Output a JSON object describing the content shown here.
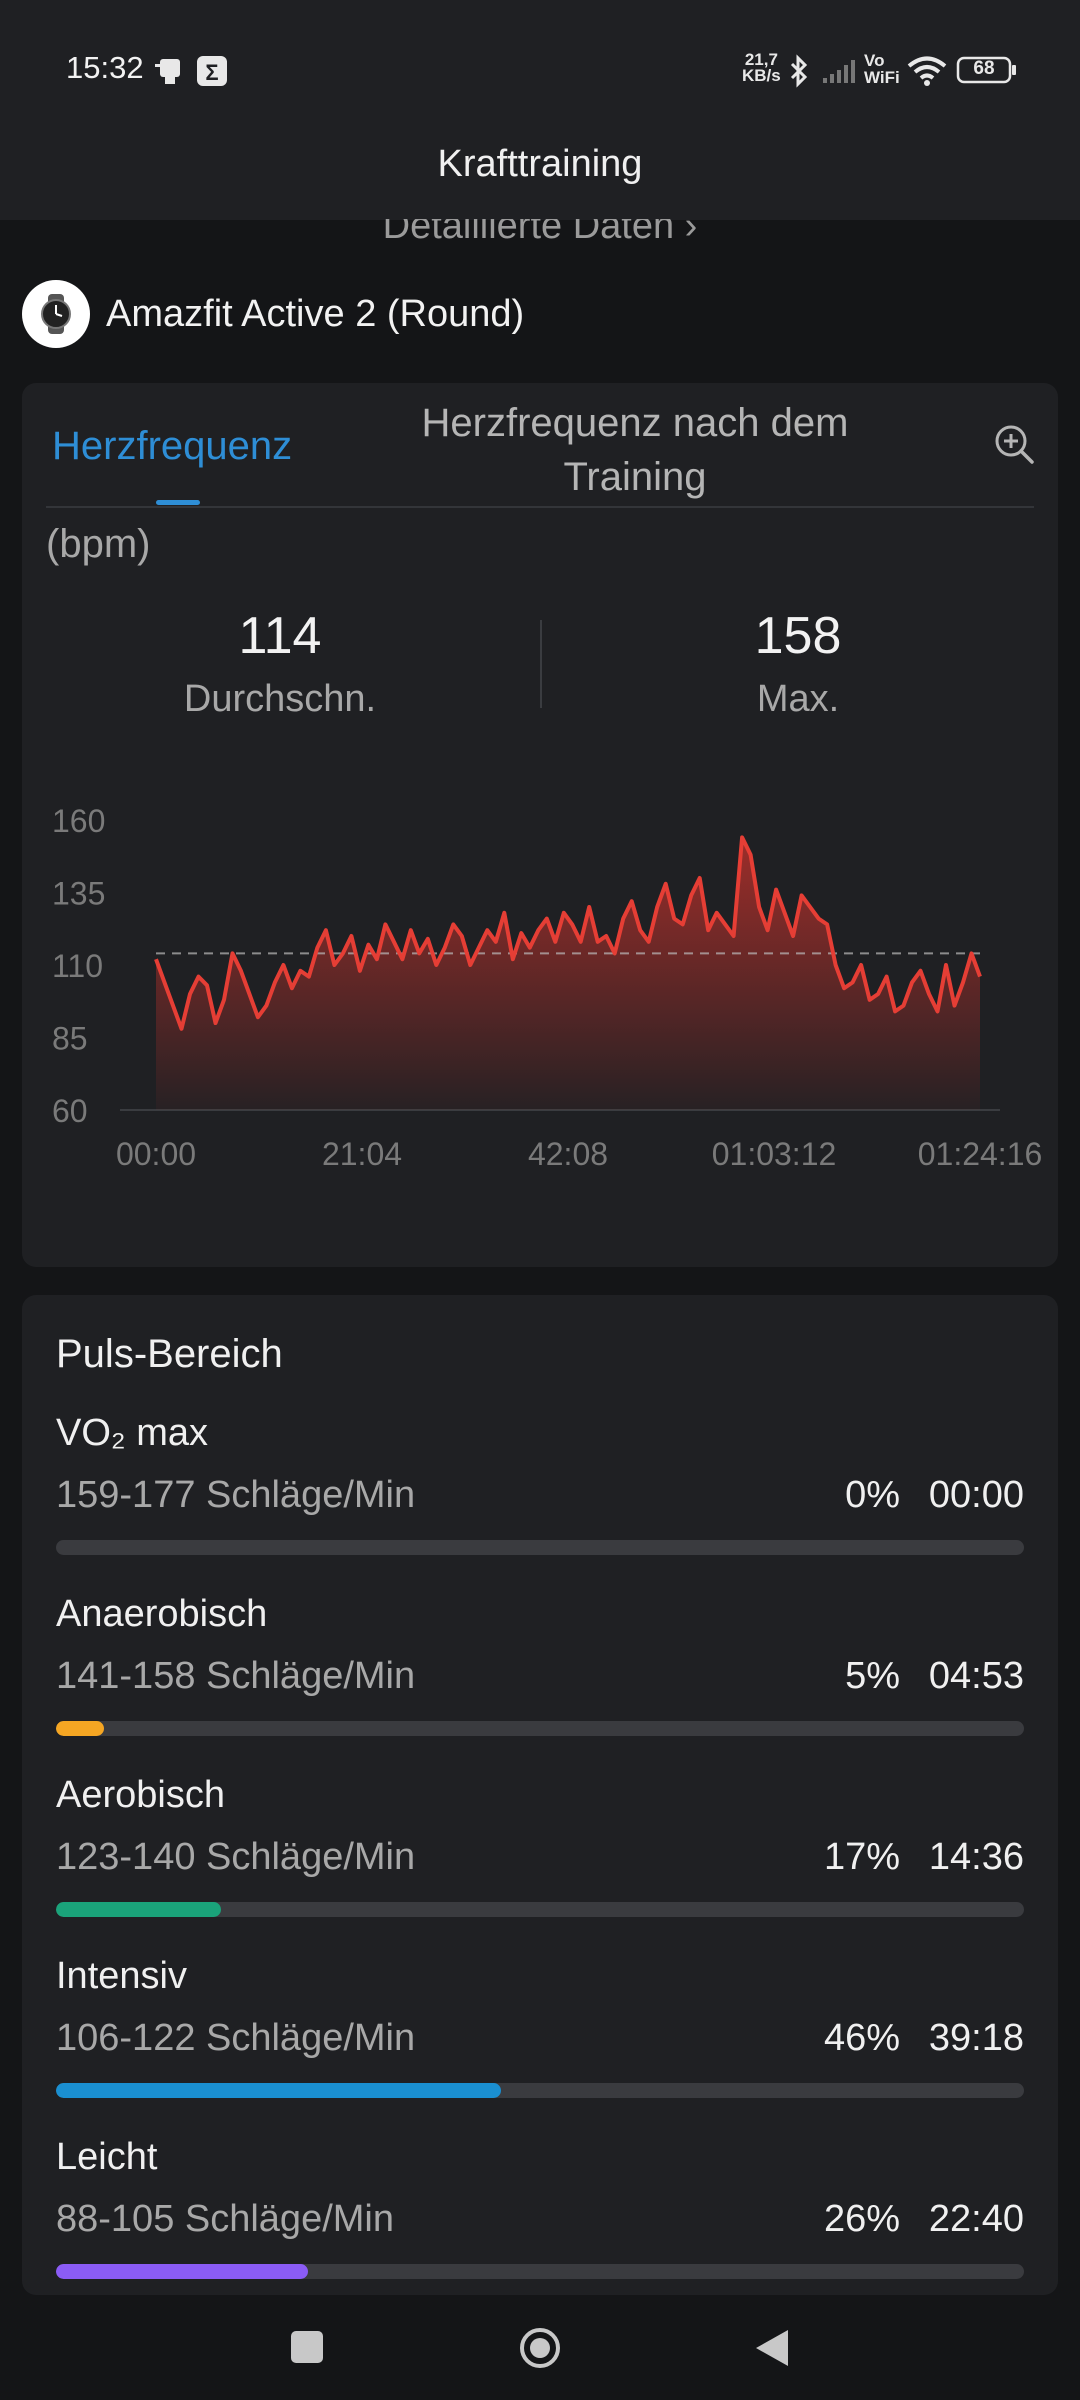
{
  "status_bar": {
    "time": "15:32",
    "net_speed_top": "21,7",
    "net_speed_bottom": "KB/s",
    "vo_top": "Vo",
    "vo_bottom": "WiFi",
    "battery": "68",
    "icons": [
      "notification-icon",
      "sigma-app-icon",
      "bluetooth-icon",
      "signal-icon",
      "vowifi-icon",
      "wifi-icon",
      "battery-icon"
    ]
  },
  "app_bar": {
    "title": "Krafttraining",
    "back_icon": "chevron-left-icon",
    "more_icon": "more-dots-icon"
  },
  "details_link": "Detaillierte Daten",
  "device": {
    "name": "Amazfit Active 2 (Round)",
    "icon": "watch-icon"
  },
  "heart_card": {
    "tabs": [
      {
        "label": "Herzfrequenz",
        "active": true
      },
      {
        "label_line1": "Herzfrequenz nach dem",
        "label_line2": "Training",
        "active": false
      }
    ],
    "zoom_icon": "zoom-in-icon",
    "unit": "(bpm)",
    "avg": {
      "value": "114",
      "label": "Durchschn."
    },
    "max": {
      "value": "158",
      "label": "Max."
    }
  },
  "chart_data": {
    "type": "area",
    "ylim": [
      60,
      160
    ],
    "yticks": [
      "160",
      "135",
      "110",
      "85",
      "60"
    ],
    "xticks": [
      "00:00",
      "21:04",
      "42:08",
      "01:03:12",
      "01:24:16"
    ],
    "x_range_min": [
      0,
      84.27
    ],
    "reference_line": 114,
    "color": "#e53e35",
    "series": [
      {
        "values": [
          112,
          104,
          96,
          88,
          100,
          106,
          103,
          90,
          98,
          114,
          108,
          100,
          92,
          96,
          104,
          110,
          102,
          108,
          106,
          116,
          122,
          110,
          114,
          120,
          108,
          117,
          112,
          124,
          118,
          112,
          122,
          114,
          119,
          110,
          116,
          124,
          120,
          110,
          116,
          122,
          118,
          128,
          112,
          121,
          116,
          122,
          126,
          118,
          128,
          124,
          118,
          130,
          118,
          120,
          114,
          126,
          132,
          122,
          118,
          130,
          138,
          126,
          124,
          134,
          140,
          122,
          128,
          124,
          120,
          154,
          148,
          130,
          122,
          136,
          128,
          120,
          134,
          130,
          126,
          124,
          110,
          102,
          104,
          110,
          98,
          100,
          106,
          94,
          96,
          104,
          108,
          100,
          94,
          110,
          96,
          104,
          114,
          106
        ]
      }
    ]
  },
  "zones": {
    "title": "Puls-Bereich",
    "items": [
      {
        "name": "VO₂ max",
        "range": "159-177 Schläge/Min",
        "pct": "0%",
        "time": "00:00",
        "fill": 0.0,
        "color": "#ff7043"
      },
      {
        "name": "Anaerobisch",
        "range": "141-158 Schläge/Min",
        "pct": "5%",
        "time": "04:53",
        "fill": 0.05,
        "color": "#f5a623"
      },
      {
        "name": "Aerobisch",
        "range": "123-140 Schläge/Min",
        "pct": "17%",
        "time": "14:36",
        "fill": 0.17,
        "color": "#1aa37a"
      },
      {
        "name": "Intensiv",
        "range": "106-122 Schläge/Min",
        "pct": "46%",
        "time": "39:18",
        "fill": 0.46,
        "color": "#1a8fd1"
      },
      {
        "name": "Leicht",
        "range": "88-105 Schläge/Min",
        "pct": "26%",
        "time": "22:40",
        "fill": 0.26,
        "color": "#8b5cf6"
      }
    ]
  },
  "nav_bar": {
    "recents_icon": "square-recents-icon",
    "home_icon": "circle-home-icon",
    "back_icon": "triangle-back-icon"
  }
}
